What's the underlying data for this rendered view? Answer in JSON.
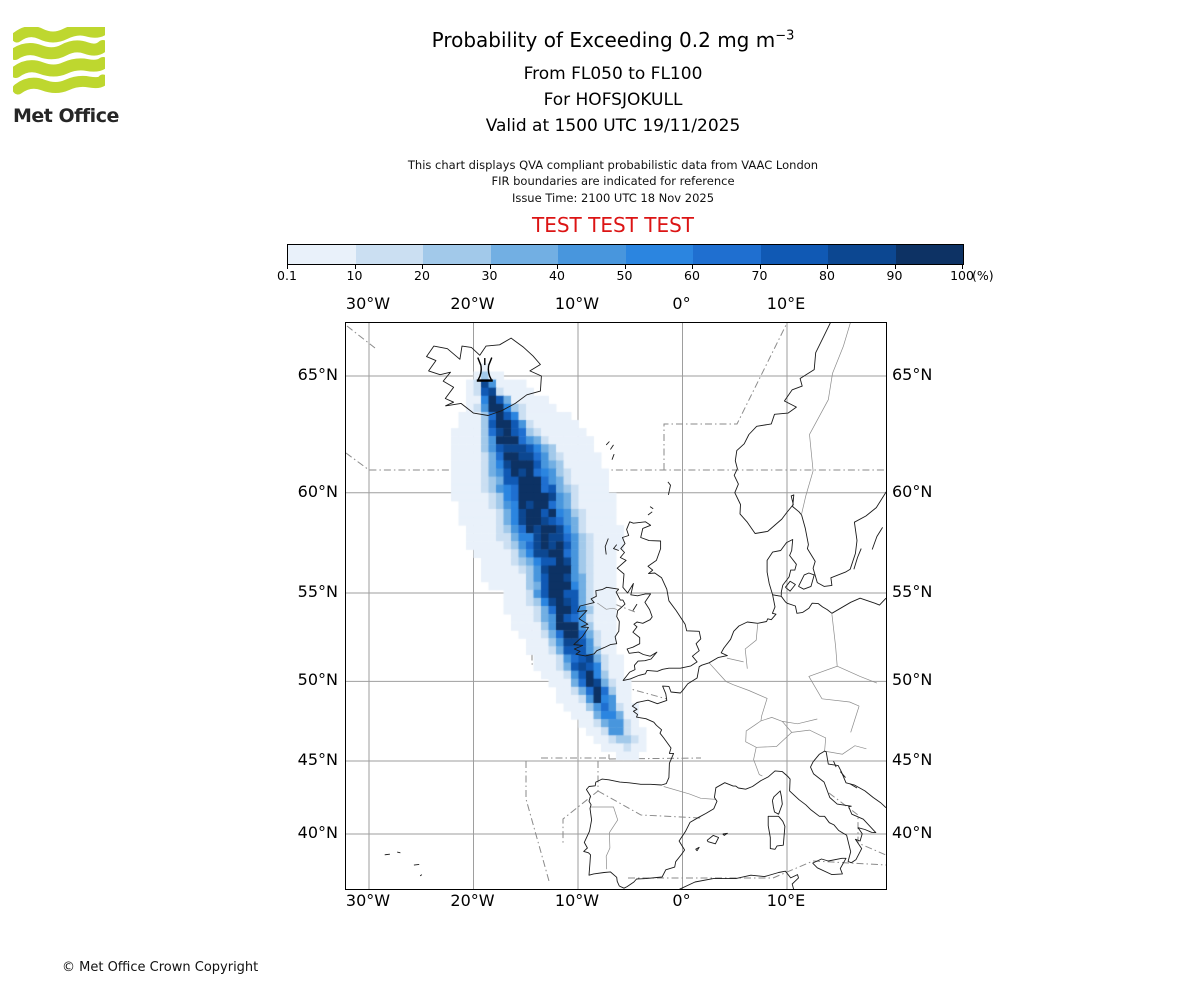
{
  "header": {
    "logo_text": "Met Office",
    "title_main": "Probability of Exceeding 0.2 mg m",
    "title_sup": "−3",
    "subtitle_levels": "From FL050 to FL100",
    "subtitle_volcano": "For HOFSJOKULL",
    "subtitle_valid": "Valid at 1500 UTC 19/11/2025",
    "note_line1": "This chart displays QVA compliant probabilistic data from VAAC London",
    "note_line2": "FIR boundaries are indicated for reference",
    "note_line3": "Issue Time: 2100 UTC 18 Nov 2025",
    "test_banner": "TEST TEST TEST"
  },
  "colorbar": {
    "tick_labels": [
      "0.1",
      "10",
      "20",
      "30",
      "40",
      "50",
      "60",
      "70",
      "80",
      "90",
      "100"
    ],
    "unit": "(%)",
    "colors": [
      "#e9f1fa",
      "#cbdff2",
      "#a2c9ea",
      "#72afe3",
      "#4896dd",
      "#2b85e0",
      "#1f6fd0",
      "#1059b4",
      "#0c4791",
      "#0d3264"
    ]
  },
  "map": {
    "top_labels": [
      "30°W",
      "20°W",
      "10°W",
      "0°",
      "10°E"
    ],
    "bottom_labels": [
      "30°W",
      "20°W",
      "10°W",
      "0°",
      "10°E"
    ],
    "left_labels": [
      "65°N",
      "60°N",
      "55°N",
      "50°N",
      "45°N",
      "40°N"
    ],
    "right_labels": [
      "65°N",
      "60°N",
      "55°N",
      "50°N",
      "45°N",
      "40°N"
    ],
    "volcano": {
      "name": "HOFSJOKULL",
      "lon": -18.92,
      "lat": 64.82
    }
  },
  "chart_data": {
    "type": "heatmap",
    "title": "Probability of Exceeding 0.2 mg m⁻³",
    "units": "%",
    "threshold": "0.2 mg m⁻³",
    "layer": "FL050 to FL100",
    "volcano": "HOFSJOKULL",
    "valid_time": "1500 UTC 19/11/2025",
    "issue_time": "2100 UTC 18 Nov 2025",
    "source": "VAAC London",
    "levels": [
      0.1,
      10,
      20,
      30,
      40,
      50,
      60,
      70,
      80,
      90,
      100
    ],
    "lon_range": [
      -32.2,
      19.5
    ],
    "lat_range": [
      36.0,
      67.0
    ],
    "plume_centerline_lon_lat_sigma_peak": [
      [
        -18.92,
        64.75,
        0.4,
        100
      ],
      [
        -18.3,
        64.1,
        0.6,
        100
      ],
      [
        -17.9,
        63.8,
        0.8,
        100
      ],
      [
        -17.2,
        63.15,
        1.1,
        100
      ],
      [
        -16.4,
        62.1,
        1.5,
        100
      ],
      [
        -15.2,
        61.0,
        1.85,
        100
      ],
      [
        -14.4,
        60.0,
        2.0,
        100
      ],
      [
        -13.7,
        58.9,
        2.0,
        100
      ],
      [
        -12.9,
        57.8,
        1.9,
        100
      ],
      [
        -12.2,
        56.6,
        1.6,
        100
      ],
      [
        -11.8,
        55.1,
        1.45,
        100
      ],
      [
        -11.1,
        53.6,
        1.3,
        100
      ],
      [
        -10.5,
        52.4,
        1.15,
        98
      ],
      [
        -9.9,
        51.5,
        1.05,
        95
      ],
      [
        -8.9,
        50.2,
        0.95,
        90
      ],
      [
        -8.0,
        49.1,
        0.85,
        85
      ],
      [
        -7.1,
        48.0,
        0.75,
        68
      ],
      [
        -6.2,
        47.0,
        0.62,
        46
      ],
      [
        -5.2,
        46.35,
        0.55,
        26
      ]
    ]
  },
  "footer": {
    "copyright": "© Met Office Crown Copyright"
  }
}
